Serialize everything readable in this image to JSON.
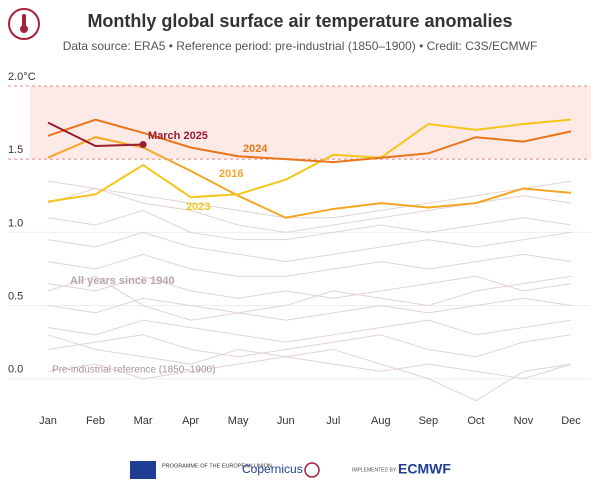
{
  "chart_data": {
    "type": "line",
    "title": "Monthly global surface air temperature anomalies",
    "subtitle": "Data source: ERA5 • Reference period: pre-industrial (1850–1900) • Credit: C3S/ECMWF",
    "categories": [
      "Jan",
      "Feb",
      "Mar",
      "Apr",
      "May",
      "Jun",
      "Jul",
      "Aug",
      "Sep",
      "Oct",
      "Nov",
      "Dec"
    ],
    "ylim": [
      -0.2,
      2.0
    ],
    "yticks": [
      {
        "value": 2.0,
        "label": "2.0°C"
      },
      1.5,
      {
        "value": 1.0,
        "label": "1.0"
      },
      0.5,
      {
        "value": 0.0,
        "label": "0.0"
      }
    ],
    "grid": true,
    "band": [
      1.5,
      2.0
    ],
    "band_color": "#fdeae6",
    "background_color": "#e3d3d3",
    "background_series": [
      {
        "values": [
          0.05,
          0.1,
          0.0,
          0.05,
          0.1,
          0.15,
          0.1,
          0.05,
          0.1,
          0.05,
          0.0,
          0.1
        ]
      },
      {
        "values": [
          0.2,
          0.25,
          0.3,
          0.2,
          0.15,
          0.2,
          0.25,
          0.3,
          0.2,
          0.15,
          0.25,
          0.3
        ]
      },
      {
        "values": [
          0.35,
          0.3,
          0.4,
          0.35,
          0.3,
          0.25,
          0.3,
          0.35,
          0.4,
          0.3,
          0.35,
          0.4
        ]
      },
      {
        "values": [
          0.5,
          0.45,
          0.55,
          0.5,
          0.45,
          0.4,
          0.45,
          0.5,
          0.45,
          0.5,
          0.55,
          0.5
        ]
      },
      {
        "values": [
          0.65,
          0.6,
          0.7,
          0.6,
          0.55,
          0.6,
          0.55,
          0.6,
          0.65,
          0.7,
          0.6,
          0.65
        ]
      },
      {
        "values": [
          0.8,
          0.75,
          0.85,
          0.75,
          0.7,
          0.7,
          0.75,
          0.8,
          0.75,
          0.8,
          0.85,
          0.8
        ]
      },
      {
        "values": [
          0.95,
          0.9,
          1.0,
          0.9,
          0.85,
          0.8,
          0.85,
          0.9,
          0.95,
          0.9,
          0.95,
          1.0
        ]
      },
      {
        "values": [
          1.1,
          1.05,
          1.15,
          1.0,
          0.95,
          0.95,
          1.0,
          1.05,
          1.0,
          1.05,
          1.1,
          1.05
        ]
      },
      {
        "values": [
          1.2,
          1.3,
          1.2,
          1.15,
          1.05,
          1.0,
          1.05,
          1.1,
          1.15,
          1.2,
          1.25,
          1.2
        ]
      },
      {
        "values": [
          1.35,
          1.3,
          1.25,
          1.2,
          1.15,
          1.1,
          1.1,
          1.15,
          1.2,
          1.25,
          1.3,
          1.35
        ]
      },
      {
        "values": [
          0.3,
          0.2,
          0.15,
          0.1,
          0.2,
          0.15,
          0.2,
          0.1,
          0.0,
          -0.15,
          0.05,
          0.1
        ]
      },
      {
        "values": [
          0.6,
          0.7,
          0.5,
          0.4,
          0.45,
          0.5,
          0.6,
          0.55,
          0.5,
          0.6,
          0.65,
          0.7
        ]
      }
    ],
    "series": [
      {
        "name": "2016",
        "color": "#f5a623",
        "values": [
          1.51,
          1.65,
          1.58,
          1.42,
          1.25,
          1.1,
          1.16,
          1.2,
          1.17,
          1.2,
          1.3,
          1.27
        ]
      },
      {
        "name": "2023",
        "color": "#f5c518",
        "values": [
          1.21,
          1.26,
          1.46,
          1.24,
          1.26,
          1.36,
          1.53,
          1.51,
          1.74,
          1.7,
          1.74,
          1.77
        ]
      },
      {
        "name": "2024",
        "color": "#e8751a",
        "values": [
          1.66,
          1.77,
          1.68,
          1.58,
          1.52,
          1.5,
          1.48,
          1.51,
          1.54,
          1.65,
          1.62,
          1.69
        ]
      },
      {
        "name": "March 2025",
        "color": "#9b1b30",
        "values": [
          1.75,
          1.59,
          1.6,
          null,
          null,
          null,
          null,
          null,
          null,
          null,
          null,
          null
        ]
      }
    ],
    "annotations": [
      "All years since 1940",
      "Pre-industrial reference (1850–1900)"
    ]
  },
  "footer": {
    "eu": "PROGRAMME OF THE EUROPEAN UNION",
    "copernicus": "Copernicus",
    "implemented": "IMPLEMENTED BY",
    "ecmwf": "ECMWF"
  }
}
